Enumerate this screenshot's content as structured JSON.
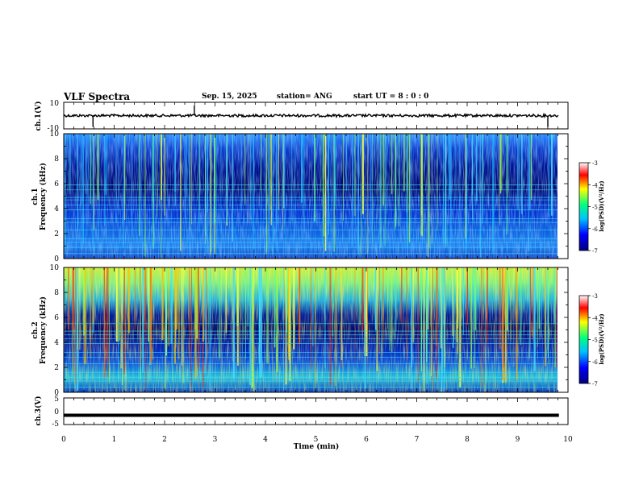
{
  "header": {
    "title": "VLF Spectra",
    "date": "Sep. 15, 2025",
    "station": "station= ANG",
    "start_ut": "start UT =  8 : 0  : 0"
  },
  "chart_data": [
    {
      "type": "line",
      "name": "ch1-waveform",
      "ylabel": "ch.1(V)",
      "ylim": [
        -10,
        10
      ],
      "yticks": [
        "10",
        "-10"
      ],
      "baseline": 0,
      "xlim": [
        0,
        10
      ]
    },
    {
      "type": "heatmap",
      "name": "ch1-spectrogram",
      "ylabel_line1": "ch.1",
      "ylabel_line2": "Frequency (kHz)",
      "ylim": [
        0,
        10
      ],
      "yticks": [
        "0",
        "2",
        "4",
        "6",
        "8",
        "10"
      ],
      "data_end_min": 9.82,
      "colorbar": {
        "label": "log(PSD)(V²/Hz)",
        "range": [
          -7,
          -3
        ],
        "ticks": [
          "-3",
          "-4",
          "-5",
          "-6",
          "-7"
        ],
        "colors": [
          "#000080",
          "#0000ff",
          "#00c0ff",
          "#00ff80",
          "#ffff00",
          "#ff0000",
          "#ffffff"
        ]
      }
    },
    {
      "type": "heatmap",
      "name": "ch2-spectrogram",
      "ylabel_line1": "ch.2",
      "ylabel_line2": "Frequency (kHz)",
      "ylim": [
        0,
        10
      ],
      "yticks": [
        "0",
        "2",
        "4",
        "6",
        "8",
        "10"
      ],
      "data_end_min": 9.82,
      "colorbar": {
        "label": "log(PSD)(V²/Hz)",
        "range": [
          -7,
          -3
        ],
        "ticks": [
          "-3",
          "-4",
          "-5",
          "-6",
          "-7"
        ],
        "colors": [
          "#000080",
          "#0000ff",
          "#00c0ff",
          "#00ff80",
          "#ffff00",
          "#ff0000",
          "#ffffff"
        ]
      }
    },
    {
      "type": "line",
      "name": "ch3-waveform",
      "ylabel": "ch.3(V)",
      "ylim": [
        -5,
        5
      ],
      "yticks": [
        "5",
        "0",
        "-5"
      ],
      "baseline": -1.5,
      "xlim": [
        0,
        10
      ],
      "xlabel": "Time (min)",
      "xticks": [
        "0",
        "1",
        "2",
        "3",
        "4",
        "5",
        "6",
        "7",
        "8",
        "9",
        "10"
      ]
    }
  ]
}
